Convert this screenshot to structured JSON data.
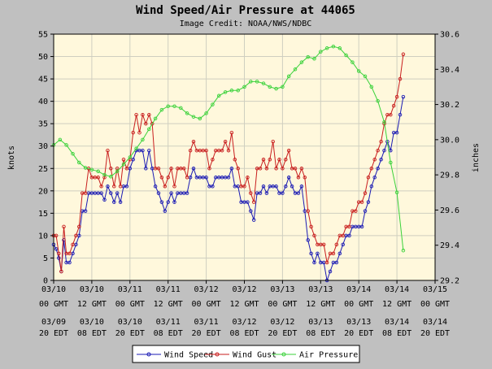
{
  "chart_data": {
    "type": "line",
    "title": "Wind Speed/Air Pressure at 44065",
    "subtitle": "Image Credit: NOAA/NWS/NDBC",
    "ylabel_left": "knots",
    "ylabel_right": "inches",
    "ylim_left": [
      0,
      55
    ],
    "ylim_right": [
      29.2,
      30.6
    ],
    "y_ticks_left": [
      "0",
      "5",
      "10",
      "15",
      "20",
      "25",
      "30",
      "35",
      "40",
      "45",
      "50",
      "55"
    ],
    "y_ticks_right": [
      "29.2",
      "29.4",
      "29.6",
      "29.8",
      "30.0",
      "30.2",
      "30.4",
      "30.6"
    ],
    "x_range_hours": [
      0,
      120
    ],
    "x_tick_hours": [
      0,
      12,
      24,
      36,
      48,
      60,
      72,
      84,
      96,
      108,
      120
    ],
    "x_ticks_gmt": [
      [
        "03/10",
        "00 GMT"
      ],
      [
        "03/10",
        "12 GMT"
      ],
      [
        "03/11",
        "00 GMT"
      ],
      [
        "03/11",
        "12 GMT"
      ],
      [
        "03/12",
        "00 GMT"
      ],
      [
        "03/12",
        "12 GMT"
      ],
      [
        "03/13",
        "00 GMT"
      ],
      [
        "03/13",
        "12 GMT"
      ],
      [
        "03/14",
        "00 GMT"
      ],
      [
        "03/14",
        "12 GMT"
      ],
      [
        "03/15",
        "00 GMT"
      ]
    ],
    "x_ticks_edt": [
      [
        "03/09",
        "20 EDT"
      ],
      [
        "03/10",
        "08 EDT"
      ],
      [
        "03/10",
        "20 EDT"
      ],
      [
        "03/11",
        "08 EDT"
      ],
      [
        "03/11",
        "20 EDT"
      ],
      [
        "03/12",
        "08 EDT"
      ],
      [
        "03/12",
        "20 EDT"
      ],
      [
        "03/13",
        "08 EDT"
      ],
      [
        "03/13",
        "20 EDT"
      ],
      [
        "03/14",
        "08 EDT"
      ],
      [
        "03/14",
        "20 EDT"
      ]
    ],
    "grid": true,
    "legend_position": "bottom",
    "series": [
      {
        "name": "Wind Speed",
        "axis": "left",
        "color": "#1b1bb4",
        "points": [
          [
            0,
            8
          ],
          [
            0.8,
            7
          ],
          [
            1.6,
            5
          ],
          [
            2.4,
            2
          ],
          [
            3.2,
            9
          ],
          [
            4,
            4
          ],
          [
            5,
            4
          ],
          [
            6,
            6
          ],
          [
            7,
            8
          ],
          [
            8,
            10
          ],
          [
            9,
            15.5
          ],
          [
            10,
            15.5
          ],
          [
            11,
            19.5
          ],
          [
            12,
            19.5
          ],
          [
            13,
            19.5
          ],
          [
            14,
            19.5
          ],
          [
            15,
            19.5
          ],
          [
            16,
            18
          ],
          [
            17,
            21
          ],
          [
            18,
            19.5
          ],
          [
            19,
            17.5
          ],
          [
            20,
            19.5
          ],
          [
            21,
            17.5
          ],
          [
            22,
            21
          ],
          [
            23,
            21
          ],
          [
            24,
            25
          ],
          [
            25,
            27
          ],
          [
            26,
            29
          ],
          [
            27,
            29
          ],
          [
            28,
            29
          ],
          [
            29,
            25
          ],
          [
            30,
            29
          ],
          [
            31,
            25
          ],
          [
            32,
            21
          ],
          [
            33,
            19.5
          ],
          [
            34,
            17.5
          ],
          [
            35,
            15.5
          ],
          [
            36,
            17.5
          ],
          [
            37,
            19.5
          ],
          [
            38,
            17.5
          ],
          [
            39,
            19.5
          ],
          [
            40,
            19.5
          ],
          [
            41,
            19.5
          ],
          [
            42,
            19.5
          ],
          [
            43,
            23
          ],
          [
            44,
            25
          ],
          [
            45,
            23
          ],
          [
            46,
            23
          ],
          [
            47,
            23
          ],
          [
            48,
            23
          ],
          [
            49,
            21
          ],
          [
            50,
            21
          ],
          [
            51,
            23
          ],
          [
            52,
            23
          ],
          [
            53,
            23
          ],
          [
            54,
            23
          ],
          [
            55,
            23
          ],
          [
            56,
            25
          ],
          [
            57,
            21
          ],
          [
            58,
            21
          ],
          [
            59,
            17.5
          ],
          [
            60,
            17.5
          ],
          [
            61,
            17.5
          ],
          [
            62,
            15.5
          ],
          [
            63,
            13.5
          ],
          [
            64,
            19.5
          ],
          [
            65,
            19.5
          ],
          [
            66,
            21
          ],
          [
            67,
            19.5
          ],
          [
            68,
            21
          ],
          [
            69,
            21
          ],
          [
            70,
            21
          ],
          [
            71,
            19.5
          ],
          [
            72,
            19.5
          ],
          [
            73,
            21
          ],
          [
            74,
            23
          ],
          [
            75,
            21
          ],
          [
            76,
            19.5
          ],
          [
            77,
            19.5
          ],
          [
            78,
            21
          ],
          [
            79,
            15.5
          ],
          [
            80,
            9
          ],
          [
            81,
            6
          ],
          [
            82,
            4
          ],
          [
            83,
            6
          ],
          [
            84,
            4
          ],
          [
            85,
            4
          ],
          [
            86,
            0
          ],
          [
            87,
            2
          ],
          [
            88,
            4
          ],
          [
            89,
            4
          ],
          [
            90,
            6
          ],
          [
            91,
            8
          ],
          [
            92,
            10
          ],
          [
            93,
            10
          ],
          [
            94,
            12
          ],
          [
            95,
            12
          ],
          [
            96,
            12
          ],
          [
            97,
            12
          ],
          [
            98,
            15.5
          ],
          [
            99,
            17.5
          ],
          [
            100,
            21
          ],
          [
            101,
            23
          ],
          [
            102,
            25
          ],
          [
            103,
            27
          ],
          [
            104,
            29
          ],
          [
            105,
            31
          ],
          [
            106,
            29
          ],
          [
            107,
            33
          ],
          [
            108,
            33
          ],
          [
            109,
            37
          ],
          [
            110,
            41
          ]
        ]
      },
      {
        "name": "Wind Gust",
        "axis": "left",
        "color": "#c81e1e",
        "points": [
          [
            0,
            10
          ],
          [
            0.8,
            10
          ],
          [
            1.6,
            6
          ],
          [
            2.4,
            2
          ],
          [
            3.2,
            12
          ],
          [
            4,
            6
          ],
          [
            5,
            6
          ],
          [
            6,
            8
          ],
          [
            7,
            10
          ],
          [
            8,
            12
          ],
          [
            9,
            19.5
          ],
          [
            10,
            19.5
          ],
          [
            11,
            25
          ],
          [
            12,
            23
          ],
          [
            13,
            23
          ],
          [
            14,
            23
          ],
          [
            15,
            21
          ],
          [
            16,
            23
          ],
          [
            17,
            29
          ],
          [
            18,
            25
          ],
          [
            19,
            21
          ],
          [
            20,
            25
          ],
          [
            21,
            21
          ],
          [
            22,
            27
          ],
          [
            23,
            25
          ],
          [
            24,
            27
          ],
          [
            25,
            33
          ],
          [
            26,
            37
          ],
          [
            27,
            33
          ],
          [
            28,
            37
          ],
          [
            29,
            35
          ],
          [
            30,
            37
          ],
          [
            31,
            35
          ],
          [
            32,
            25
          ],
          [
            33,
            25
          ],
          [
            34,
            23
          ],
          [
            35,
            21
          ],
          [
            36,
            23
          ],
          [
            37,
            25
          ],
          [
            38,
            21
          ],
          [
            39,
            25
          ],
          [
            40,
            25
          ],
          [
            41,
            25
          ],
          [
            42,
            23
          ],
          [
            43,
            29
          ],
          [
            44,
            31
          ],
          [
            45,
            29
          ],
          [
            46,
            29
          ],
          [
            47,
            29
          ],
          [
            48,
            29
          ],
          [
            49,
            25
          ],
          [
            50,
            27
          ],
          [
            51,
            29
          ],
          [
            52,
            29
          ],
          [
            53,
            29
          ],
          [
            54,
            31
          ],
          [
            55,
            29
          ],
          [
            56,
            33
          ],
          [
            57,
            27
          ],
          [
            58,
            25
          ],
          [
            59,
            21
          ],
          [
            60,
            21
          ],
          [
            61,
            23
          ],
          [
            62,
            19.5
          ],
          [
            63,
            17.5
          ],
          [
            64,
            25
          ],
          [
            65,
            25
          ],
          [
            66,
            27
          ],
          [
            67,
            25
          ],
          [
            68,
            27
          ],
          [
            69,
            31
          ],
          [
            70,
            25
          ],
          [
            71,
            27
          ],
          [
            72,
            25
          ],
          [
            73,
            27
          ],
          [
            74,
            29
          ],
          [
            75,
            25
          ],
          [
            76,
            25
          ],
          [
            77,
            23
          ],
          [
            78,
            25
          ],
          [
            79,
            23
          ],
          [
            80,
            15.5
          ],
          [
            81,
            12
          ],
          [
            82,
            10
          ],
          [
            83,
            8
          ],
          [
            84,
            8
          ],
          [
            85,
            8
          ],
          [
            86,
            4
          ],
          [
            87,
            6
          ],
          [
            88,
            6
          ],
          [
            89,
            8
          ],
          [
            90,
            10
          ],
          [
            91,
            10
          ],
          [
            92,
            12
          ],
          [
            93,
            12
          ],
          [
            94,
            15.5
          ],
          [
            95,
            15.5
          ],
          [
            96,
            17.5
          ],
          [
            97,
            17.5
          ],
          [
            98,
            19.5
          ],
          [
            99,
            23
          ],
          [
            100,
            25
          ],
          [
            101,
            27
          ],
          [
            102,
            29
          ],
          [
            103,
            31
          ],
          [
            104,
            35
          ],
          [
            105,
            37
          ],
          [
            106,
            37
          ],
          [
            107,
            39
          ],
          [
            108,
            41
          ],
          [
            109,
            45
          ],
          [
            110,
            50.5
          ]
        ]
      },
      {
        "name": "Air Pressure",
        "axis": "right",
        "color": "#3ad23a",
        "points": [
          [
            0,
            29.97
          ],
          [
            2,
            30.0
          ],
          [
            4,
            29.97
          ],
          [
            6,
            29.92
          ],
          [
            8,
            29.87
          ],
          [
            10,
            29.84
          ],
          [
            12,
            29.83
          ],
          [
            14,
            29.82
          ],
          [
            16,
            29.8
          ],
          [
            18,
            29.79
          ],
          [
            20,
            29.82
          ],
          [
            22,
            29.86
          ],
          [
            24,
            29.9
          ],
          [
            26,
            29.95
          ],
          [
            28,
            30.0
          ],
          [
            30,
            30.06
          ],
          [
            32,
            30.12
          ],
          [
            34,
            30.17
          ],
          [
            36,
            30.19
          ],
          [
            38,
            30.19
          ],
          [
            40,
            30.18
          ],
          [
            42,
            30.15
          ],
          [
            44,
            30.13
          ],
          [
            46,
            30.12
          ],
          [
            48,
            30.15
          ],
          [
            50,
            30.2
          ],
          [
            52,
            30.25
          ],
          [
            54,
            30.27
          ],
          [
            56,
            30.28
          ],
          [
            58,
            30.28
          ],
          [
            60,
            30.3
          ],
          [
            62,
            30.33
          ],
          [
            64,
            30.33
          ],
          [
            66,
            30.32
          ],
          [
            68,
            30.3
          ],
          [
            70,
            30.29
          ],
          [
            72,
            30.3
          ],
          [
            74,
            30.36
          ],
          [
            76,
            30.4
          ],
          [
            78,
            30.44
          ],
          [
            80,
            30.47
          ],
          [
            82,
            30.46
          ],
          [
            84,
            30.5
          ],
          [
            86,
            30.52
          ],
          [
            88,
            30.53
          ],
          [
            90,
            30.52
          ],
          [
            92,
            30.48
          ],
          [
            94,
            30.44
          ],
          [
            96,
            30.39
          ],
          [
            98,
            30.36
          ],
          [
            100,
            30.3
          ],
          [
            102,
            30.22
          ],
          [
            104,
            30.1
          ],
          [
            106,
            29.87
          ],
          [
            108,
            29.7
          ],
          [
            110,
            29.37
          ]
        ]
      }
    ]
  }
}
